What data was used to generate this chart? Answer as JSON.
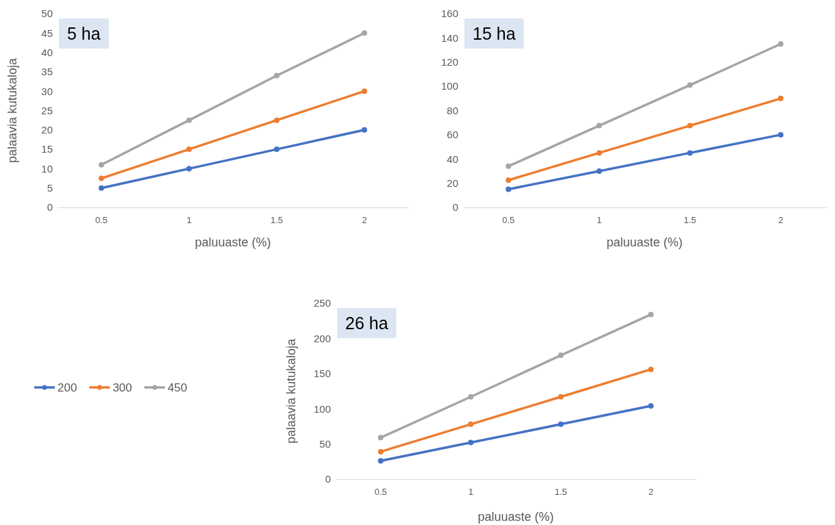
{
  "chart_data": [
    {
      "type": "line",
      "categories": [
        "0.5",
        "1",
        "1.5",
        "2"
      ],
      "xlabel": "paluuaste (%)",
      "ylabel": "palaavia kutukaloja",
      "ylim": [
        0,
        50
      ],
      "yticks": [
        0,
        5,
        10,
        15,
        20,
        25,
        30,
        35,
        40,
        45,
        50
      ],
      "marker": "circle",
      "grid": false,
      "legend": "bottom left",
      "annotations": [
        "5 ha"
      ],
      "series": [
        {
          "name": "200",
          "color": "#4472c4",
          "values": [
            5,
            10,
            15,
            20
          ]
        },
        {
          "name": "300",
          "color": "#ed7d31",
          "values": [
            7.5,
            15,
            22.5,
            30
          ]
        },
        {
          "name": "450",
          "color": "#a5a5a5",
          "values": [
            11,
            22.5,
            34,
            45
          ]
        }
      ]
    },
    {
      "type": "line",
      "categories": [
        "0.5",
        "1",
        "1.5",
        "2"
      ],
      "xlabel": "paluuaste (%)",
      "ylim": [
        0,
        160
      ],
      "yticks": [
        0,
        20,
        40,
        60,
        80,
        100,
        120,
        140,
        160
      ],
      "marker": "circle",
      "grid": false,
      "annotations": [
        "15 ha"
      ],
      "series": [
        {
          "color": "#4472c4",
          "values": [
            15,
            30,
            45,
            60
          ]
        },
        {
          "color": "#ed7d31",
          "values": [
            22.5,
            45,
            67.5,
            90
          ]
        },
        {
          "color": "#a5a5a5",
          "values": [
            34,
            67.5,
            101,
            135
          ]
        }
      ]
    },
    {
      "type": "line",
      "categories": [
        "0.5",
        "1",
        "1.5",
        "2"
      ],
      "xlabel": "paluuaste (%)",
      "ylabel": "palaavia kutukaloja",
      "ylim": [
        0,
        250
      ],
      "yticks": [
        0,
        50,
        100,
        150,
        200,
        250
      ],
      "marker": "circle",
      "grid": false,
      "annotations": [
        "26 ha"
      ],
      "series": [
        {
          "color": "#4472c4",
          "values": [
            26,
            52,
            78,
            104
          ]
        },
        {
          "color": "#ed7d31",
          "values": [
            39,
            78,
            117,
            156
          ]
        },
        {
          "color": "#a5a5a5",
          "values": [
            59,
            117,
            176,
            234
          ]
        }
      ]
    }
  ]
}
